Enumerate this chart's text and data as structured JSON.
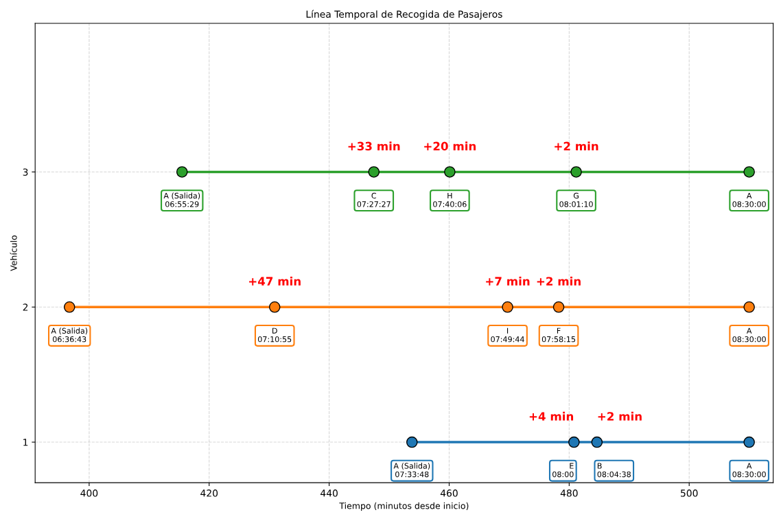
{
  "chart_data": {
    "type": "line",
    "title": "Línea Temporal de Recogida de Pasajeros",
    "xlabel": "Tiempo (minutos desde inicio)",
    "ylabel": "Vehículo",
    "series": [
      {
        "color": "#1f77b4",
        "x": [
          453.8,
          480.8,
          484.63,
          510
        ],
        "values": [
          1,
          1,
          1,
          1
        ],
        "value_labels": [
          "A (Salida)\n07:33:48",
          "E\n08:00",
          "B\n08:04:38",
          "A\n08:30:00"
        ]
      },
      {
        "color": "#ff7f0e",
        "x": [
          396.72,
          430.92,
          469.73,
          478.25,
          510
        ],
        "values": [
          2,
          2,
          2,
          2,
          2
        ],
        "value_labels": [
          "A (Salida)\n06:36:43",
          "D\n07:10:55",
          "I\n07:49:44",
          "F\n07:58:15",
          "A\n08:30:00"
        ]
      },
      {
        "color": "#2ca02c",
        "x": [
          415.48,
          447.45,
          460.1,
          481.17,
          510
        ],
        "values": [
          3,
          3,
          3,
          3,
          3
        ],
        "value_labels": [
          "A (Salida)\n06:55:29",
          "C\n07:27:27",
          "H\n07:40:06",
          "G\n08:01:10",
          "A\n08:30:00"
        ]
      }
    ],
    "annotations": [
      {
        "text": "+4 min",
        "x": 480.8,
        "y": 1
      },
      {
        "text": "+2 min",
        "x": 484.63,
        "y": 1
      },
      {
        "text": "+47 min",
        "x": 430.92,
        "y": 2
      },
      {
        "text": "+7 min",
        "x": 469.73,
        "y": 2
      },
      {
        "text": "+2 min",
        "x": 478.25,
        "y": 2
      },
      {
        "text": "+33 min",
        "x": 447.45,
        "y": 3
      },
      {
        "text": "+20 min",
        "x": 460.1,
        "y": 3
      },
      {
        "text": "+2 min",
        "x": 481.17,
        "y": 3
      }
    ],
    "xlim": [
      391,
      514
    ],
    "ylim": [
      0.7,
      4.1
    ],
    "xticks": [
      400,
      420,
      440,
      460,
      480,
      500
    ],
    "yticks": [
      1,
      2,
      3
    ],
    "grid": true,
    "marker": "circle",
    "line_style": "solid"
  }
}
